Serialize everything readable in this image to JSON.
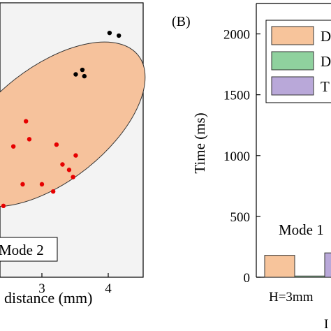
{
  "panel_b_label": "(B)",
  "chart_data": [
    {
      "type": "scatter",
      "xlabel": "distance (mm)",
      "xticks": [
        3,
        4
      ],
      "series": [
        {
          "color": "#e60000",
          "points": [
            [
              2.76,
              1.78
            ],
            [
              2.81,
              1.58
            ],
            [
              3.22,
              1.52
            ],
            [
              2.57,
              1.5
            ],
            [
              3.51,
              1.4
            ],
            [
              3.31,
              1.3
            ],
            [
              3.41,
              1.24
            ],
            [
              3.47,
              1.16
            ],
            [
              2.71,
              1.08
            ],
            [
              3.0,
              1.08
            ],
            [
              3.17,
              1.0
            ],
            [
              2.42,
              0.84
            ]
          ]
        },
        {
          "color": "#000000",
          "points": [
            [
              4.02,
              2.76
            ],
            [
              4.16,
              2.73
            ],
            [
              3.61,
              2.35
            ],
            [
              3.51,
              2.3
            ],
            [
              3.64,
              2.28
            ]
          ]
        }
      ],
      "ellipse_fill": "#f6c29c",
      "legend_text": "Mode 2"
    },
    {
      "type": "bar",
      "ylabel": "Time (ms)",
      "yticks": [
        0,
        500,
        1000,
        1500,
        2000
      ],
      "ylim": [
        0,
        2250
      ],
      "categories_visible": [
        "H=3mm"
      ],
      "legend": [
        {
          "label": "D",
          "color": "#f7c49b"
        },
        {
          "label": "D",
          "color": "#8fd19e"
        },
        {
          "label": "T",
          "color": "#b9a8d9"
        }
      ],
      "series": [
        {
          "color": "#f7c49b",
          "values": [
            180
          ]
        },
        {
          "color": "#8fd19e",
          "values": [
            10
          ]
        },
        {
          "color": "#b9a8d9",
          "values": [
            200
          ]
        }
      ],
      "annotation": "Mode 1",
      "x_axis_fragment": "I"
    }
  ]
}
